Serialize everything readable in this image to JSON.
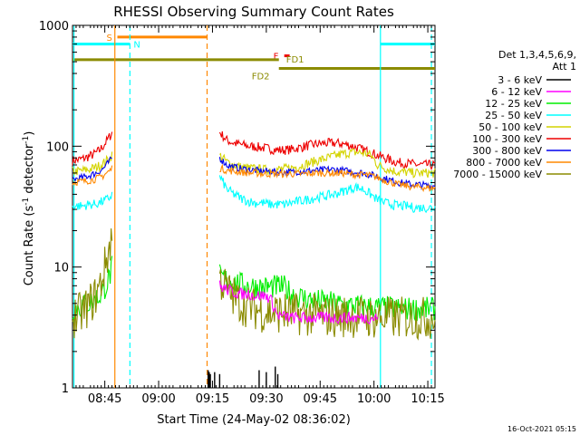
{
  "chart_data": {
    "type": "line",
    "title": "RHESSI Observing Summary Count Rates",
    "xlabel": "Start Time (24-May-02 08:36:02)",
    "ylabel_main": "Count Rate (s",
    "ylabel_exp1": "-1",
    "ylabel_mid": " detector",
    "ylabel_exp2": "-1",
    "ylabel_end": ")",
    "y_scale": "log",
    "ylim": [
      1,
      1000
    ],
    "xlim_minutes": [
      0,
      101
    ],
    "x_ticks": [
      {
        "label": "08:45",
        "minute": 9
      },
      {
        "label": "09:00",
        "minute": 24
      },
      {
        "label": "09:15",
        "minute": 39
      },
      {
        "label": "09:30",
        "minute": 54
      },
      {
        "label": "09:45",
        "minute": 69
      },
      {
        "label": "10:00",
        "minute": 84
      },
      {
        "label": "10:15",
        "minute": 99
      }
    ],
    "y_ticks": [
      {
        "label": "1",
        "value": 1
      },
      {
        "label": "10",
        "value": 10
      },
      {
        "label": "100",
        "value": 100
      },
      {
        "label": "1000",
        "value": 1000
      }
    ],
    "legend_header": [
      "Det 1,3,4,5,6,9,",
      "Att 1"
    ],
    "series": [
      {
        "name": "3 - 6 keV",
        "color": "#000000"
      },
      {
        "name": "6 - 12 keV",
        "color": "#ff00ff"
      },
      {
        "name": "12 - 25 keV",
        "color": "#00ee00"
      },
      {
        "name": "25 - 50 keV",
        "color": "#00ffff"
      },
      {
        "name": "50 - 100 keV",
        "color": "#d4d400"
      },
      {
        "name": "100 - 300 keV",
        "color": "#ee0000"
      },
      {
        "name": "300 - 800 keV",
        "color": "#0000ee"
      },
      {
        "name": "800 - 7000 keV",
        "color": "#ff8800"
      },
      {
        "name": "7000 - 15000 keV",
        "color": "#8b8b00"
      }
    ],
    "data_minutes": {
      "pre": [
        0,
        1.5,
        3,
        4.5,
        6,
        7.5,
        8.5,
        9.5,
        10.5,
        11
      ],
      "post": [
        41,
        43,
        45,
        47,
        49,
        51,
        53,
        55,
        57,
        59,
        61,
        63,
        65,
        67,
        69,
        71,
        73,
        75,
        77,
        79,
        81,
        83,
        85,
        87,
        89,
        91,
        93,
        95,
        97,
        99,
        101
      ]
    },
    "curves": {
      "100 - 300 keV": {
        "pre": [
          76,
          77,
          79,
          82,
          86,
          92,
          100,
          110,
          122,
          130
        ],
        "post": [
          130,
          112,
          106,
          103,
          100,
          99,
          97,
          95,
          93,
          93,
          94,
          97,
          100,
          103,
          105,
          106,
          106,
          105,
          102,
          98,
          93,
          89,
          84,
          80,
          76,
          73,
          72,
          71,
          70,
          70,
          70
        ]
      },
      "50 - 100 keV": {
        "pre": [
          62,
          62,
          63,
          64,
          66,
          69,
          72,
          76,
          80,
          85
        ],
        "post": [
          84,
          74,
          70,
          67,
          66,
          65,
          64,
          64,
          64,
          65,
          66,
          68,
          71,
          74,
          77,
          80,
          83,
          86,
          88,
          89,
          88,
          85,
          70,
          66,
          63,
          61,
          61,
          60,
          60,
          60,
          60
        ]
      },
      "300 - 800 keV": {
        "pre": [
          53,
          54,
          55,
          57,
          59,
          62,
          65,
          70,
          76,
          80
        ],
        "post": [
          80,
          70,
          67,
          65,
          64,
          63,
          62,
          62,
          61,
          61,
          61,
          62,
          62,
          63,
          63,
          64,
          64,
          63,
          62,
          61,
          60,
          58,
          56,
          54,
          52,
          50,
          49,
          48,
          48,
          47,
          47
        ]
      },
      "800 - 7000 keV": {
        "pre": [
          50,
          51,
          51,
          52,
          53,
          55,
          57,
          60,
          63,
          66
        ],
        "post": [
          66,
          63,
          62,
          61,
          60,
          60,
          59,
          59,
          59,
          59,
          59,
          59,
          59,
          60,
          60,
          60,
          60,
          60,
          59,
          58,
          58,
          57,
          55,
          52,
          50,
          48,
          47,
          46,
          46,
          45,
          45
        ]
      },
      "25 - 50 keV": {
        "pre": [
          32,
          32,
          32,
          33,
          33,
          34,
          35,
          36,
          38,
          40
        ],
        "post": [
          56,
          44,
          40,
          37,
          35,
          34,
          34,
          33,
          33,
          33,
          34,
          35,
          36,
          37,
          38,
          39,
          40,
          42,
          44,
          46,
          44,
          40,
          36,
          34,
          33,
          32,
          32,
          31,
          31,
          31,
          31
        ]
      },
      "12 - 25 keV": {
        "pre": [
          4.5,
          4.6,
          4.8,
          5.0,
          5.3,
          5.7,
          6.3,
          7.2,
          8.6,
          10
        ],
        "post": [
          8.5,
          7.8,
          7.5,
          7.2,
          7.0,
          6.9,
          6.8,
          6.8,
          6.9,
          6.8,
          6.0,
          5.7,
          5.5,
          5.3,
          5.2,
          5.1,
          5.0,
          4.9,
          4.8,
          4.8,
          4.7,
          4.7,
          4.6,
          4.6,
          4.6,
          4.5,
          4.5,
          4.5,
          4.5,
          4.5,
          4.5
        ]
      },
      "7000 - 15000 keV": {
        "pre": [
          3.8,
          4.0,
          4.3,
          4.8,
          5.5,
          6.7,
          8.5,
          11.5,
          15.5,
          19
        ],
        "post": [
          8.0,
          6.5,
          5.6,
          5.0,
          4.7,
          4.5,
          4.3,
          4.2,
          4.2,
          4.2,
          4.1,
          4.1,
          4.0,
          4.0,
          4.0,
          3.9,
          3.9,
          3.9,
          3.9,
          3.9,
          3.9,
          3.8,
          3.8,
          3.8,
          3.8,
          3.8,
          3.8,
          3.8,
          3.8,
          3.8,
          3.8
        ]
      },
      "6 - 12 keV": {
        "pre": [],
        "post": [
          7.0,
          6.5,
          6.2,
          6.0,
          6.0,
          5.8,
          5.8,
          5.6,
          4.0,
          3.9,
          3.8,
          3.8,
          3.8,
          3.8,
          3.8,
          3.8,
          3.8,
          3.8,
          3.8,
          3.8,
          3.8,
          3.8,
          3.8
        ]
      }
    },
    "flags": [
      {
        "label": "S",
        "color": "#ff8800",
        "from_minute": 12.5,
        "to_minute": 37.5,
        "value": 800
      },
      {
        "label": "N",
        "color": "#00ffff",
        "from_minute": 0,
        "to_minute": 16,
        "value": 700
      },
      {
        "label": "N",
        "color": "#00ffff",
        "from_minute": 85.8,
        "to_minute": 101,
        "value": 700
      },
      {
        "label": "F",
        "color": "#ee0000",
        "from_minute": 59,
        "to_minute": 60.5,
        "value": 560
      },
      {
        "label": "FD1",
        "color": "#8b8b00",
        "from_minute": 0,
        "to_minute": 57.5,
        "value": 520
      },
      {
        "label": "FD2",
        "color": "#8b8b00",
        "from_minute": 57.5,
        "to_minute": 101,
        "value": 440
      }
    ],
    "attenuator_lines": [
      {
        "minute": 11.8,
        "color": "#ff8800",
        "style": "solid"
      },
      {
        "minute": 37.5,
        "color": "#ff8800",
        "style": "dashed"
      },
      {
        "minute": 0.4,
        "color": "#00ffff",
        "style": "solid"
      },
      {
        "minute": 16.0,
        "color": "#00ffff",
        "style": "dashed"
      },
      {
        "minute": 85.8,
        "color": "#00ffff",
        "style": "solid"
      },
      {
        "minute": 100.0,
        "color": "#00ffff",
        "style": "dashed"
      }
    ],
    "footer_timestamp": "16-Oct-2021 05:15"
  }
}
